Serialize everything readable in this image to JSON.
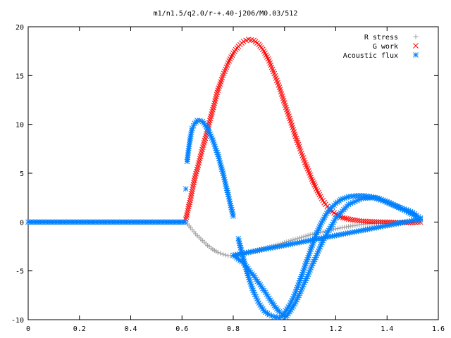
{
  "chart_data": {
    "type": "scatter",
    "title": "m1/n1.5/q2.0/r-+.40-j206/M0.03/512",
    "xlabel": "",
    "ylabel": "",
    "xlim": [
      0,
      1.6
    ],
    "ylim": [
      -10,
      20
    ],
    "x_ticks": [
      0,
      0.2,
      0.4,
      0.6,
      0.8,
      1,
      1.2,
      1.4,
      1.6
    ],
    "x_tick_labels": [
      "0",
      "0.2",
      "0.4",
      "0.6",
      "0.8",
      "1",
      "1.2",
      "1.4",
      "1.6"
    ],
    "y_ticks": [
      -10,
      -5,
      0,
      5,
      10,
      15,
      20
    ],
    "y_tick_labels": [
      "-10",
      "-5",
      "0",
      "5",
      "10",
      "15",
      "20"
    ],
    "grid": false,
    "legend_position": "top-right",
    "series": [
      {
        "name": "R stress",
        "marker": "+",
        "color": "#a0a0a0",
        "points": [
          [
            0.615,
            0.0
          ],
          [
            0.64,
            -0.8
          ],
          [
            0.66,
            -1.4
          ],
          [
            0.68,
            -1.9
          ],
          [
            0.7,
            -2.4
          ],
          [
            0.72,
            -2.8
          ],
          [
            0.74,
            -3.1
          ],
          [
            0.76,
            -3.3
          ],
          [
            0.78,
            -3.45
          ],
          [
            0.8,
            -3.45
          ],
          [
            0.82,
            -3.4
          ],
          [
            0.84,
            -3.3
          ],
          [
            0.86,
            -3.15
          ],
          [
            0.88,
            -3.0
          ],
          [
            0.9,
            -2.85
          ],
          [
            0.95,
            -2.5
          ],
          [
            1.0,
            -2.1
          ],
          [
            1.05,
            -1.7
          ],
          [
            1.1,
            -1.3
          ],
          [
            1.15,
            -1.0
          ],
          [
            1.2,
            -0.7
          ],
          [
            1.25,
            -0.45
          ],
          [
            1.3,
            -0.25
          ],
          [
            1.35,
            -0.12
          ],
          [
            1.4,
            -0.05
          ],
          [
            1.45,
            -0.02
          ],
          [
            1.5,
            0.0
          ],
          [
            1.53,
            0.0
          ]
        ]
      },
      {
        "name": "G work",
        "marker": "x",
        "color": "#ff0000",
        "points": [
          [
            0.615,
            0.3
          ],
          [
            0.63,
            2.0
          ],
          [
            0.65,
            4.5
          ],
          [
            0.67,
            6.5
          ],
          [
            0.7,
            9.5
          ],
          [
            0.72,
            11.5
          ],
          [
            0.74,
            13.5
          ],
          [
            0.76,
            15.0
          ],
          [
            0.78,
            16.3
          ],
          [
            0.8,
            17.3
          ],
          [
            0.82,
            18.0
          ],
          [
            0.84,
            18.5
          ],
          [
            0.86,
            18.7
          ],
          [
            0.88,
            18.6
          ],
          [
            0.9,
            18.2
          ],
          [
            0.92,
            17.5
          ],
          [
            0.94,
            16.5
          ],
          [
            0.96,
            15.2
          ],
          [
            0.98,
            13.8
          ],
          [
            1.0,
            12.2
          ],
          [
            1.02,
            10.6
          ],
          [
            1.04,
            9.0
          ],
          [
            1.06,
            7.5
          ],
          [
            1.08,
            6.1
          ],
          [
            1.1,
            4.8
          ],
          [
            1.12,
            3.6
          ],
          [
            1.14,
            2.6
          ],
          [
            1.16,
            1.8
          ],
          [
            1.18,
            1.2
          ],
          [
            1.2,
            0.8
          ],
          [
            1.22,
            0.5
          ],
          [
            1.25,
            0.3
          ],
          [
            1.3,
            0.1
          ],
          [
            1.35,
            0.03
          ],
          [
            1.4,
            0.0
          ],
          [
            1.45,
            -0.05
          ],
          [
            1.5,
            -0.05
          ],
          [
            1.53,
            0.0
          ]
        ]
      },
      {
        "name": "Acoustic flux",
        "marker": "*",
        "color": "#0080ff",
        "points": [
          [
            0.0,
            0.0
          ],
          [
            0.1,
            0.0
          ],
          [
            0.2,
            0.0
          ],
          [
            0.3,
            0.0
          ],
          [
            0.4,
            0.0
          ],
          [
            0.5,
            0.0
          ],
          [
            0.6,
            0.0
          ],
          [
            0.612,
            0.0
          ],
          [
            0.615,
            3.4
          ],
          [
            0.62,
            6.2
          ],
          [
            0.625,
            7.3
          ],
          [
            0.63,
            8.2
          ],
          [
            0.635,
            9.0
          ],
          [
            0.64,
            9.6
          ],
          [
            0.65,
            10.1
          ],
          [
            0.66,
            10.4
          ],
          [
            0.67,
            10.4
          ],
          [
            0.68,
            10.3
          ],
          [
            0.7,
            9.6
          ],
          [
            0.72,
            8.4
          ],
          [
            0.74,
            6.9
          ],
          [
            0.76,
            5.0
          ],
          [
            0.78,
            2.8
          ],
          [
            0.8,
            0.6
          ],
          [
            0.82,
            -1.7
          ],
          [
            0.84,
            -3.8
          ],
          [
            0.86,
            -5.7
          ],
          [
            0.88,
            -7.2
          ],
          [
            0.9,
            -8.3
          ],
          [
            0.92,
            -9.1
          ],
          [
            0.94,
            -9.5
          ],
          [
            0.96,
            -9.7
          ],
          [
            0.98,
            -9.8
          ],
          [
            0.99,
            -9.7
          ],
          [
            1.0,
            -9.3
          ],
          [
            1.02,
            -8.5
          ],
          [
            1.04,
            -7.4
          ],
          [
            1.06,
            -6.0
          ],
          [
            1.08,
            -4.5
          ],
          [
            1.1,
            -3.0
          ],
          [
            1.12,
            -1.5
          ],
          [
            1.14,
            -0.3
          ],
          [
            1.16,
            0.7
          ],
          [
            1.18,
            1.4
          ],
          [
            1.2,
            1.9
          ],
          [
            1.22,
            2.3
          ],
          [
            1.25,
            2.6
          ],
          [
            1.28,
            2.7
          ],
          [
            1.31,
            2.7
          ],
          [
            1.34,
            2.6
          ],
          [
            1.37,
            2.4
          ],
          [
            1.4,
            2.1
          ],
          [
            1.43,
            1.7
          ],
          [
            1.46,
            1.3
          ],
          [
            1.49,
            0.9
          ],
          [
            1.51,
            0.6
          ],
          [
            1.53,
            0.3
          ],
          [
            0.8,
            -3.4
          ],
          [
            0.84,
            -4.2
          ],
          [
            0.88,
            -5.5
          ],
          [
            0.92,
            -7.0
          ],
          [
            0.95,
            -8.2
          ],
          [
            0.97,
            -8.9
          ],
          [
            0.98,
            -9.2
          ],
          [
            0.99,
            -9.4
          ],
          [
            1.0,
            -9.6
          ],
          [
            1.005,
            -9.7
          ],
          [
            1.01,
            -9.6
          ],
          [
            1.02,
            -9.2
          ],
          [
            1.04,
            -8.4
          ],
          [
            1.06,
            -7.3
          ],
          [
            1.1,
            -4.9
          ],
          [
            1.15,
            -1.9
          ],
          [
            1.2,
            0.4
          ],
          [
            1.25,
            1.8
          ],
          [
            1.3,
            2.4
          ],
          [
            1.35,
            2.5
          ],
          [
            1.4,
            2.0
          ],
          [
            1.45,
            1.5
          ],
          [
            1.5,
            1.0
          ],
          [
            1.53,
            0.4
          ]
        ]
      }
    ]
  }
}
